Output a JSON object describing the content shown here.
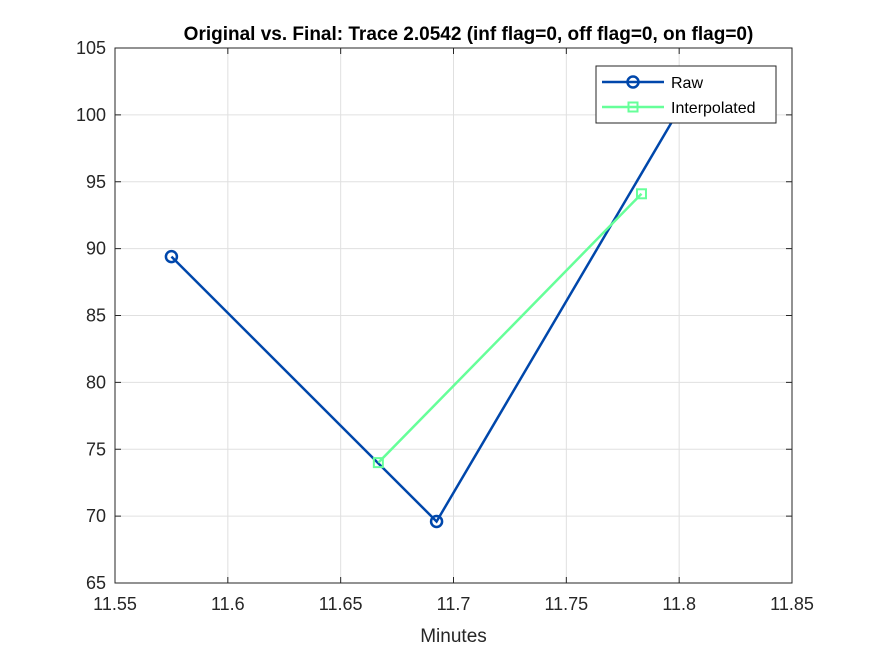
{
  "chart_data": {
    "type": "line",
    "title": "Original vs. Final: Trace 2.0542 (inf flag=0, off flag=0, on flag=0)",
    "xlabel": "Minutes",
    "ylabel": "",
    "xlim": [
      11.55,
      11.85
    ],
    "ylim": [
      65,
      105
    ],
    "xticks": [
      11.55,
      11.6,
      11.65,
      11.7,
      11.75,
      11.8,
      11.85
    ],
    "xtick_labels": [
      "11.55",
      "11.6",
      "11.65",
      "11.7",
      "11.75",
      "11.8",
      "11.85"
    ],
    "yticks": [
      65,
      70,
      75,
      80,
      85,
      90,
      95,
      100,
      105
    ],
    "ytick_labels": [
      "65",
      "70",
      "75",
      "80",
      "85",
      "90",
      "95",
      "100",
      "105"
    ],
    "grid": true,
    "legend_position": "top-right",
    "series": [
      {
        "name": "Raw",
        "color": "#0047AB",
        "marker": "circle",
        "x": [
          11.575,
          11.6925,
          11.8
        ],
        "y": [
          89.4,
          69.6,
          100.4
        ]
      },
      {
        "name": "Interpolated",
        "color": "#66FF99",
        "marker": "square",
        "x": [
          11.6667,
          11.7833
        ],
        "y": [
          74.0,
          94.1
        ]
      }
    ]
  }
}
